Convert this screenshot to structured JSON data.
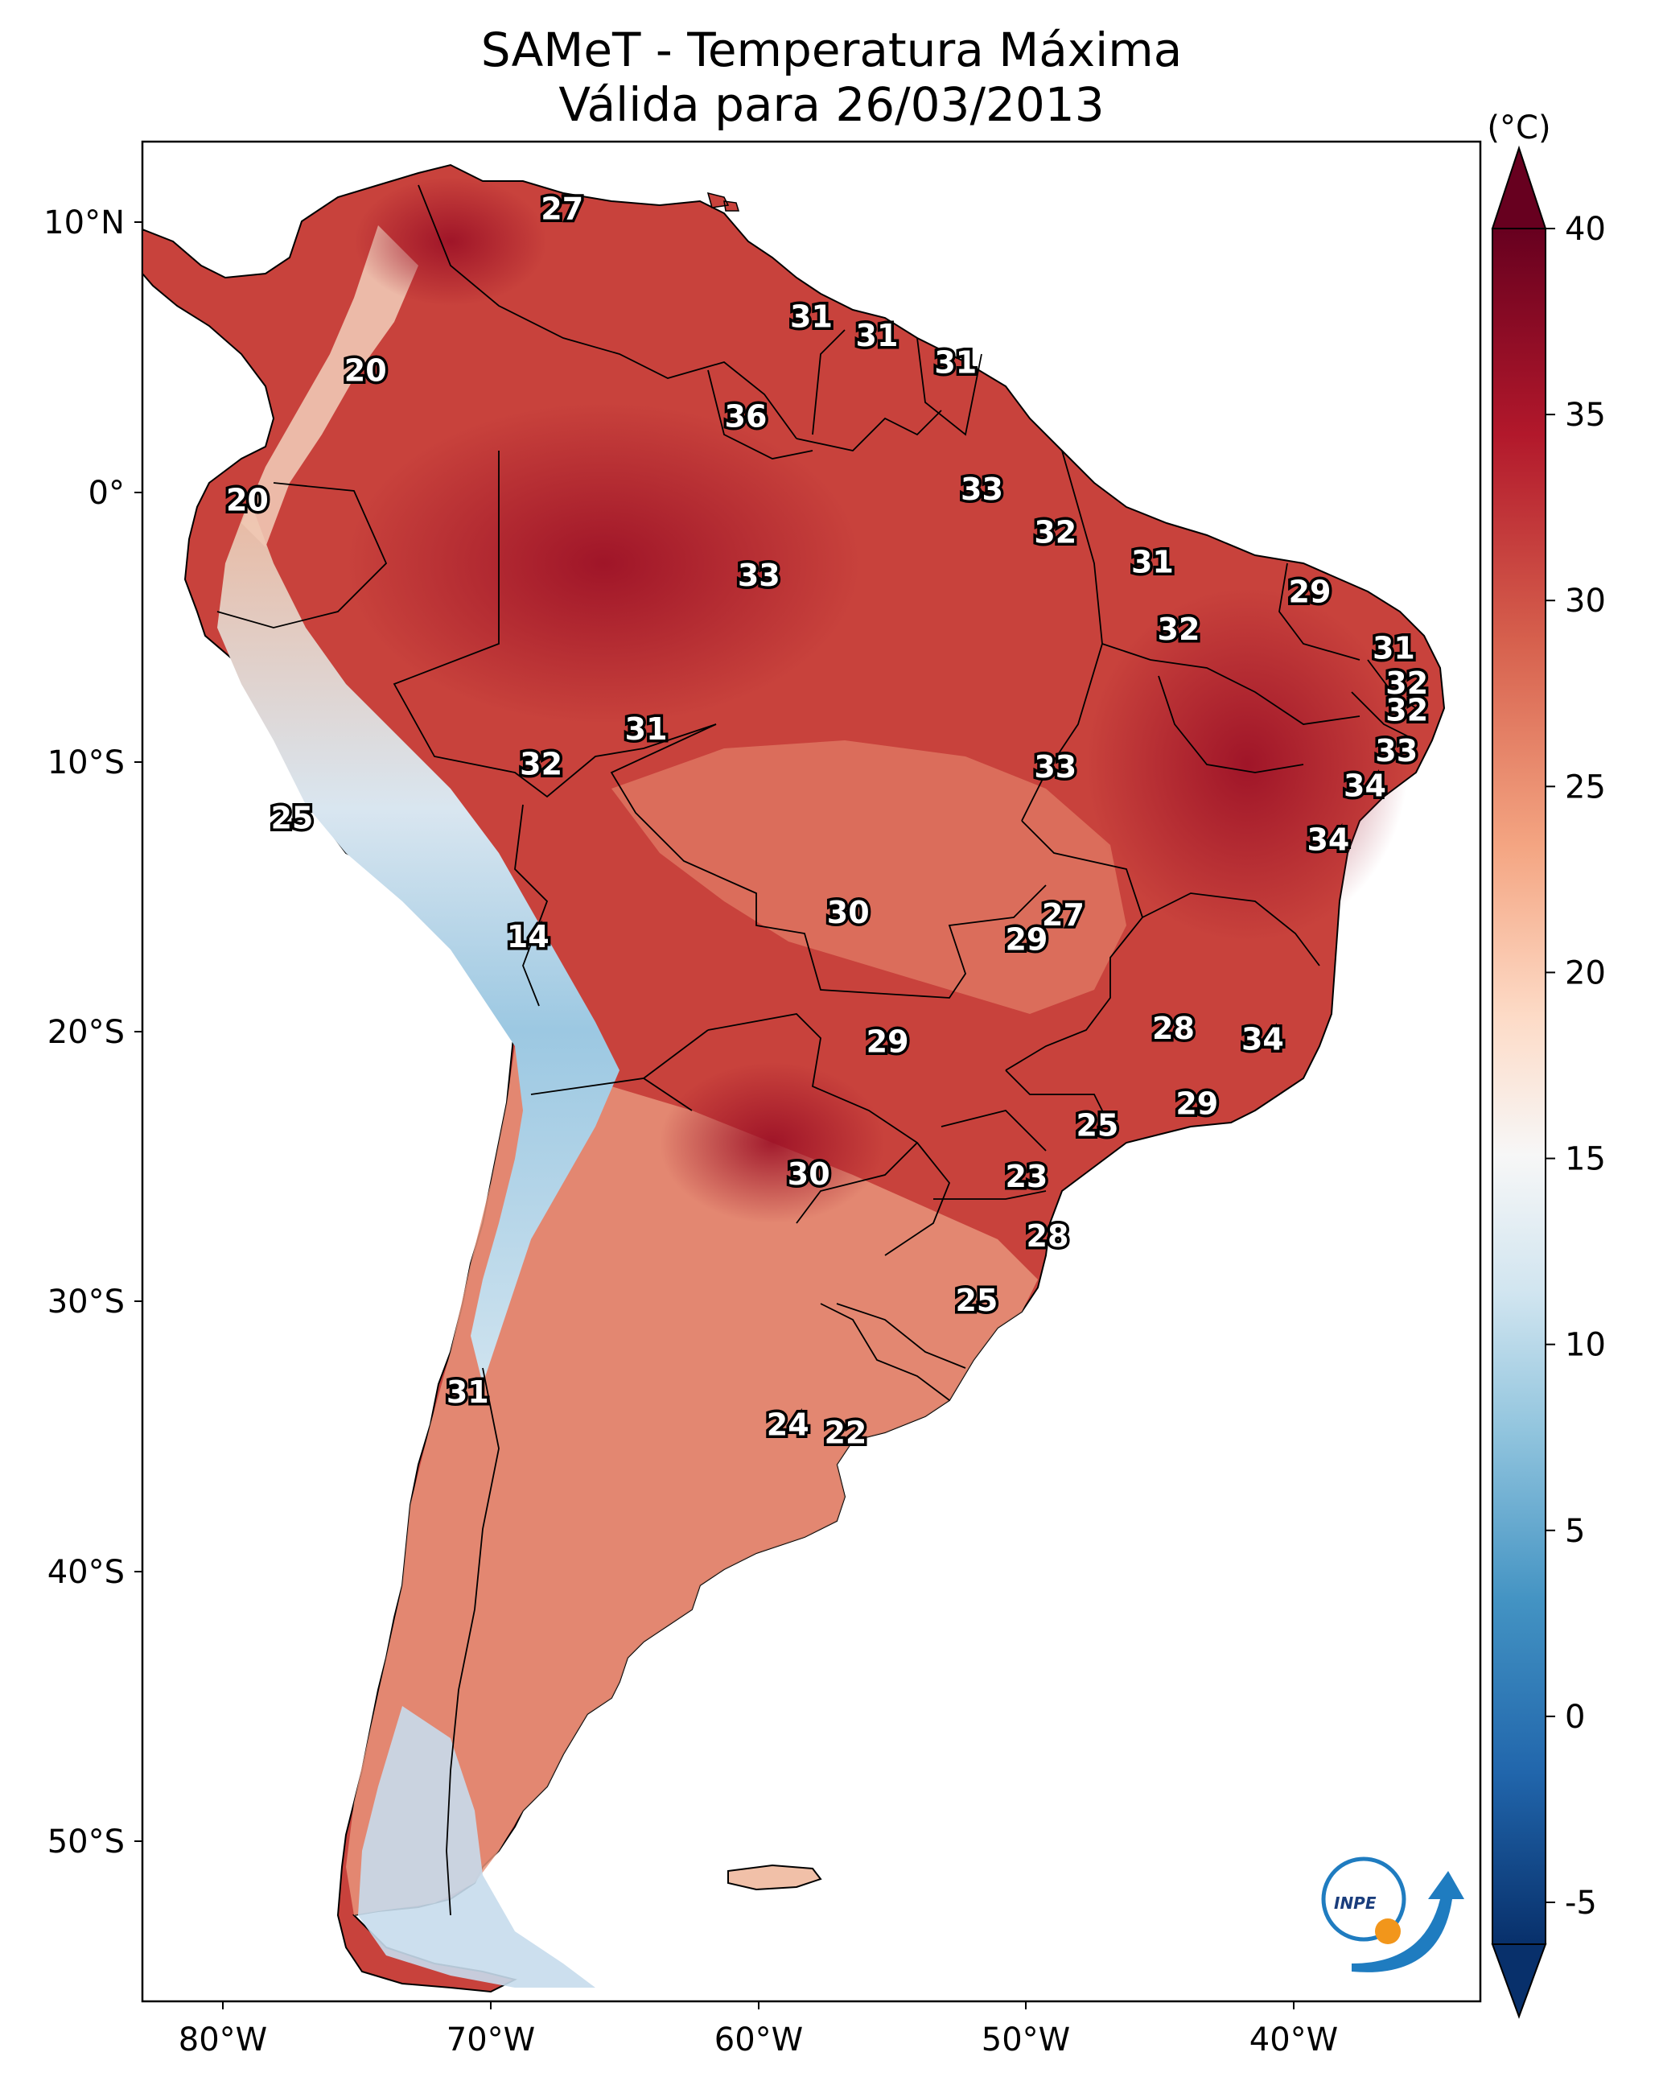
{
  "title": {
    "line1": "SAMeT - Temperatura Máxima",
    "line2": "Válida para 26/03/2013"
  },
  "map": {
    "lon_ticks": [
      "80°W",
      "70°W",
      "60°W",
      "50°W",
      "40°W"
    ],
    "lat_ticks": [
      "10°N",
      "0°",
      "10°S",
      "20°S",
      "30°S",
      "40°S",
      "50°S"
    ],
    "lon_range": [
      -83,
      -32
    ],
    "lat_range": [
      -56,
      13
    ]
  },
  "colorbar": {
    "unit": "(°C)",
    "ticks": [
      "40",
      "35",
      "30",
      "25",
      "20",
      "15",
      "10",
      "5",
      "0",
      "-5"
    ],
    "range": [
      -5,
      40
    ],
    "colors": [
      "#08306b",
      "#2166ac",
      "#4393c3",
      "#92c5de",
      "#d1e5f0",
      "#f7f7f7",
      "#fddbc7",
      "#f4a582",
      "#d6604d",
      "#b2182b",
      "#67001f"
    ]
  },
  "station_labels": [
    {
      "text": "27",
      "lon": -67,
      "lat": 10.5
    },
    {
      "text": "20",
      "lon": -74.5,
      "lat": 4.5
    },
    {
      "text": "31",
      "lon": -57.5,
      "lat": 6.5
    },
    {
      "text": "31",
      "lon": -55,
      "lat": 5.8
    },
    {
      "text": "31",
      "lon": -52,
      "lat": 4.8
    },
    {
      "text": "36",
      "lon": -60,
      "lat": 2.8
    },
    {
      "text": "20",
      "lon": -79,
      "lat": -0.3
    },
    {
      "text": "33",
      "lon": -51,
      "lat": 0.1
    },
    {
      "text": "32",
      "lon": -48.2,
      "lat": -1.5
    },
    {
      "text": "33",
      "lon": -59.5,
      "lat": -3.1
    },
    {
      "text": "31",
      "lon": -44.5,
      "lat": -2.6
    },
    {
      "text": "29",
      "lon": -38.5,
      "lat": -3.7
    },
    {
      "text": "32",
      "lon": -43.5,
      "lat": -5.1
    },
    {
      "text": "31",
      "lon": -35.3,
      "lat": -5.8
    },
    {
      "text": "32",
      "lon": -34.8,
      "lat": -7.1
    },
    {
      "text": "32",
      "lon": -34.8,
      "lat": -8.1
    },
    {
      "text": "31",
      "lon": -63.8,
      "lat": -8.8
    },
    {
      "text": "32",
      "lon": -67.8,
      "lat": -10.1
    },
    {
      "text": "33",
      "lon": -48.2,
      "lat": -10.2
    },
    {
      "text": "33",
      "lon": -35.2,
      "lat": -9.6
    },
    {
      "text": "34",
      "lon": -36.4,
      "lat": -10.9
    },
    {
      "text": "25",
      "lon": -77.3,
      "lat": -12.1
    },
    {
      "text": "34",
      "lon": -37.8,
      "lat": -12.9
    },
    {
      "text": "30",
      "lon": -56.1,
      "lat": -15.6
    },
    {
      "text": "27",
      "lon": -47.9,
      "lat": -15.7
    },
    {
      "text": "29",
      "lon": -49.3,
      "lat": -16.6
    },
    {
      "text": "14",
      "lon": -68.3,
      "lat": -16.5
    },
    {
      "text": "28",
      "lon": -43.7,
      "lat": -19.9
    },
    {
      "text": "29",
      "lon": -54.6,
      "lat": -20.4
    },
    {
      "text": "34",
      "lon": -40.3,
      "lat": -20.3
    },
    {
      "text": "29",
      "lon": -42.8,
      "lat": -22.7
    },
    {
      "text": "25",
      "lon": -46.6,
      "lat": -23.5
    },
    {
      "text": "30",
      "lon": -57.6,
      "lat": -25.3
    },
    {
      "text": "23",
      "lon": -49.3,
      "lat": -25.4
    },
    {
      "text": "28",
      "lon": -48.5,
      "lat": -27.6
    },
    {
      "text": "25",
      "lon": -51.2,
      "lat": -30.0
    },
    {
      "text": "31",
      "lon": -70.6,
      "lat": -33.4
    },
    {
      "text": "24",
      "lon": -58.4,
      "lat": -34.6
    },
    {
      "text": "22",
      "lon": -56.2,
      "lat": -34.9
    }
  ]
}
